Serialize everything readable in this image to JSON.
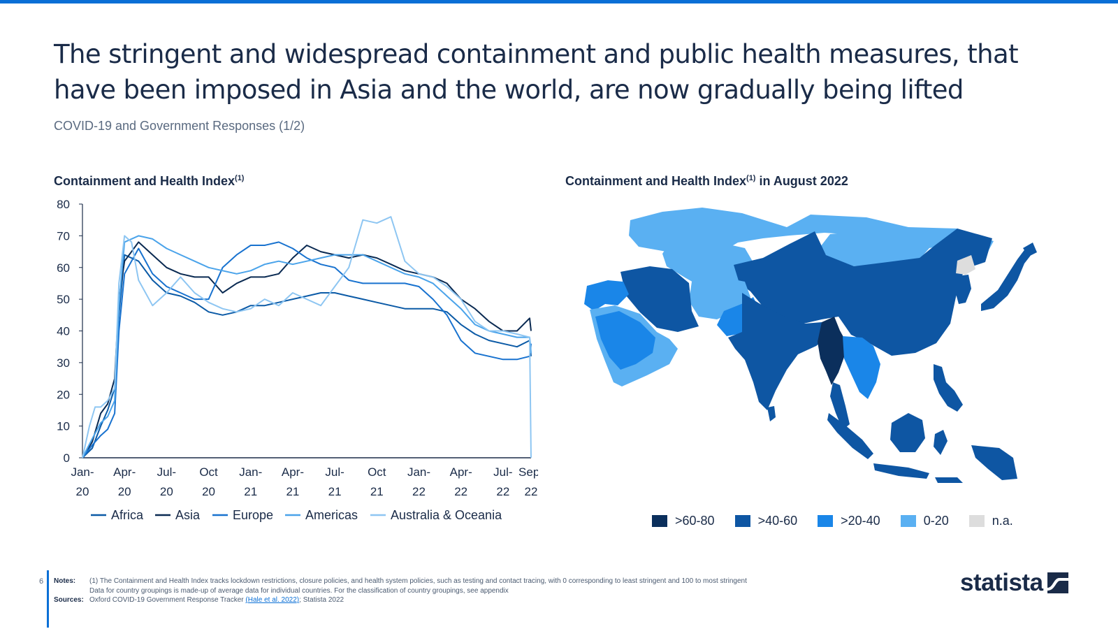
{
  "header": {
    "headline": "The stringent and widespread containment and public health measures, that have been imposed in Asia and the world, are now gradually being lifted",
    "subtitle": "COVID-19 and Government Responses (1/2)"
  },
  "chart_data": [
    {
      "type": "line",
      "title": "Containment and Health Index",
      "title_sup": "(1)",
      "xlabel": "",
      "ylabel": "",
      "ylim": [
        0,
        80
      ],
      "yticks": [
        0,
        10,
        20,
        30,
        40,
        50,
        60,
        70,
        80
      ],
      "xlim": [
        0,
        32
      ],
      "x_ticks": [
        {
          "x": 0,
          "line1": "Jan-",
          "line2": "20"
        },
        {
          "x": 3,
          "line1": "Apr-",
          "line2": "20"
        },
        {
          "x": 6,
          "line1": "Jul-",
          "line2": "20"
        },
        {
          "x": 9,
          "line1": "Oct",
          "line2": "20"
        },
        {
          "x": 12,
          "line1": "Jan-",
          "line2": "21"
        },
        {
          "x": 15,
          "line1": "Apr-",
          "line2": "21"
        },
        {
          "x": 18,
          "line1": "Jul-",
          "line2": "21"
        },
        {
          "x": 21,
          "line1": "Oct",
          "line2": "21"
        },
        {
          "x": 24,
          "line1": "Jan-",
          "line2": "22"
        },
        {
          "x": 27,
          "line1": "Apr-",
          "line2": "22"
        },
        {
          "x": 30,
          "line1": "Jul-",
          "line2": "22"
        },
        {
          "x": 32,
          "line1": "Sep-",
          "line2": "22"
        }
      ],
      "grid": false,
      "legend_position": "bottom",
      "series": [
        {
          "name": "Africa",
          "color": "#0b5aa6",
          "x": [
            0,
            0.7,
            1.3,
            1.8,
            2.3,
            2.6,
            3,
            4,
            5,
            6,
            7,
            8,
            9,
            10,
            11,
            12,
            13,
            14,
            15,
            16,
            17,
            18,
            19,
            20,
            21,
            22,
            23,
            24,
            25,
            26,
            27,
            28,
            29,
            30,
            31,
            31.9,
            32
          ],
          "y": [
            0,
            3,
            10,
            15,
            22,
            45,
            64,
            62,
            56,
            52,
            51,
            49,
            46,
            45,
            46,
            48,
            48,
            49,
            50,
            51,
            52,
            52,
            51,
            50,
            49,
            48,
            47,
            47,
            47,
            46,
            42,
            39,
            37,
            36,
            35,
            37,
            32
          ]
        },
        {
          "name": "Asia",
          "color": "#0a2a52",
          "x": [
            0,
            0.7,
            1.3,
            1.8,
            2.3,
            2.6,
            3,
            4,
            5,
            6,
            7,
            8,
            9,
            10,
            11,
            12,
            13,
            14,
            15,
            16,
            17,
            18,
            19,
            20,
            21,
            22,
            23,
            24,
            25,
            26,
            27,
            28,
            29,
            30,
            31,
            31.9,
            32
          ],
          "y": [
            0,
            5,
            14,
            17,
            25,
            50,
            62,
            68,
            64,
            60,
            58,
            57,
            57,
            52,
            55,
            57,
            57,
            58,
            63,
            67,
            65,
            64,
            63,
            64,
            63,
            61,
            59,
            58,
            57,
            55,
            50,
            47,
            43,
            40,
            40,
            44,
            40
          ]
        },
        {
          "name": "Europe",
          "color": "#1872cf",
          "x": [
            0,
            0.7,
            1.3,
            1.8,
            2.3,
            2.6,
            3,
            4,
            5,
            6,
            7,
            8,
            9,
            10,
            11,
            12,
            13,
            14,
            15,
            16,
            17,
            18,
            19,
            20,
            21,
            22,
            23,
            24,
            25,
            26,
            27,
            28,
            29,
            30,
            31,
            31.9,
            32
          ],
          "y": [
            0,
            4,
            7,
            9,
            14,
            40,
            58,
            66,
            58,
            54,
            52,
            50,
            50,
            60,
            64,
            67,
            67,
            68,
            66,
            63,
            61,
            60,
            56,
            55,
            55,
            55,
            55,
            54,
            50,
            45,
            37,
            33,
            32,
            31,
            31,
            32,
            36
          ]
        },
        {
          "name": "Americas",
          "color": "#4aa3ea",
          "x": [
            0,
            0.7,
            1.3,
            1.8,
            2.3,
            2.6,
            3,
            4,
            5,
            6,
            7,
            8,
            9,
            10,
            11,
            12,
            13,
            14,
            15,
            16,
            17,
            18,
            19,
            20,
            21,
            22,
            23,
            24,
            25,
            26,
            27,
            28,
            29,
            30,
            31,
            31.9,
            32
          ],
          "y": [
            0,
            6,
            11,
            13,
            18,
            48,
            68,
            70,
            69,
            66,
            64,
            62,
            60,
            59,
            58,
            59,
            61,
            62,
            61,
            62,
            63,
            64,
            64,
            64,
            62,
            60,
            58,
            57,
            55,
            51,
            47,
            42,
            40,
            39,
            38,
            38,
            33
          ]
        },
        {
          "name": "Australia & Oceania",
          "color": "#8ec6f2",
          "x": [
            0,
            0.5,
            0.9,
            1.3,
            1.8,
            2.3,
            2.6,
            3,
            3.5,
            4,
            5,
            6,
            7,
            8,
            9,
            10,
            11,
            12,
            13,
            14,
            15,
            16,
            17,
            18,
            19,
            20,
            21,
            22,
            23,
            24,
            25,
            26,
            27,
            28,
            29,
            30,
            31,
            31.9,
            32
          ],
          "y": [
            0,
            10,
            16,
            16,
            18,
            22,
            55,
            70,
            68,
            56,
            48,
            52,
            57,
            52,
            49,
            47,
            46,
            47,
            50,
            48,
            52,
            50,
            48,
            54,
            60,
            75,
            74,
            76,
            62,
            58,
            57,
            54,
            50,
            43,
            40,
            40,
            39,
            38,
            0
          ]
        }
      ]
    },
    {
      "type": "choropleth_map",
      "title": "Containment and Health Index",
      "title_sup": "(1)",
      "title_suffix": " in August 2022",
      "legend": [
        {
          "label": ">60-80",
          "color": "#0b2f5c"
        },
        {
          "label": ">40-60",
          "color": "#0e56a3"
        },
        {
          "label": ">20-40",
          "color": "#1a86e8"
        },
        {
          "label": "0-20",
          "color": "#5ab0f2"
        },
        {
          "label": "n.a.",
          "color": "#dddddd"
        }
      ]
    }
  ],
  "footer": {
    "page_number": "6",
    "notes_label": "Notes:",
    "note_line1": "(1) The Containment and Health Index tracks lockdown restrictions, closure policies, and health system policies, such as testing and contact tracing, with 0 corresponding to least stringent and 100 to most stringent",
    "note_line2": "Data for country groupings is made-up of average data for individual countries. For the classification of country groupings, see appendix",
    "sources_label": "Sources:",
    "sources_prefix": "Oxford COVID-19 Government Response Tracker ",
    "sources_link": "(Hale et al. 2022)",
    "sources_suffix": "; Statista 2022"
  },
  "brand": {
    "name": "statista",
    "icon": "statista-logo-mark"
  }
}
